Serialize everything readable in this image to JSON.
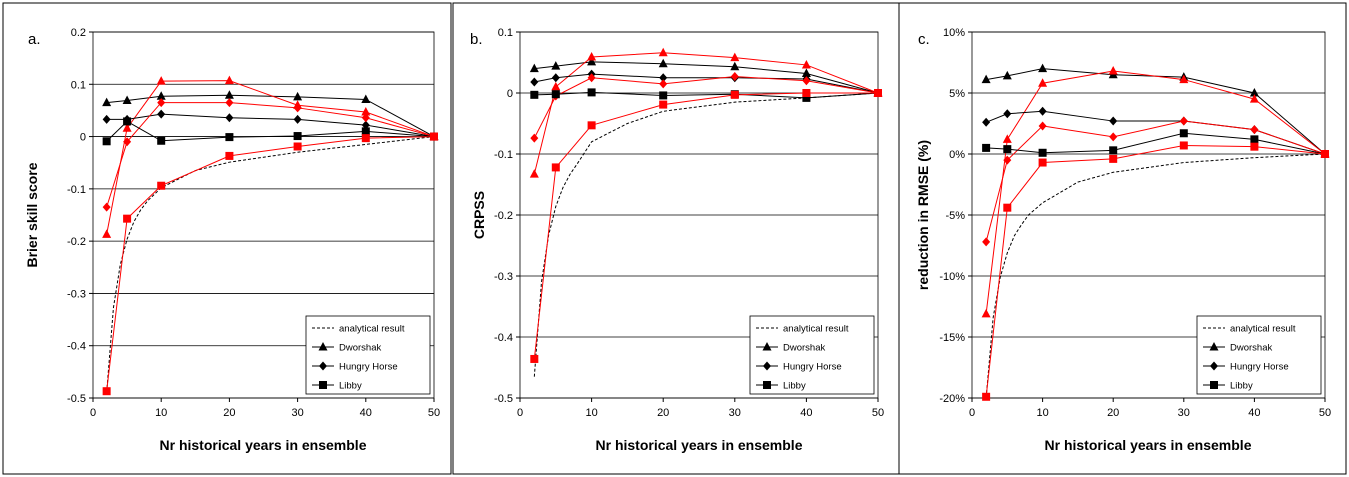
{
  "chart_data": [
    {
      "type": "line",
      "panel_label": "a.",
      "xlabel": "Nr historical years in ensemble",
      "ylabel": "Brier skill score",
      "xlim": [
        0,
        50
      ],
      "ylim": [
        -0.5,
        0.2
      ],
      "xticks": [
        "0",
        "10",
        "20",
        "30",
        "40",
        "50"
      ],
      "yticks": [
        "-0.5",
        "-0.4",
        "-0.3",
        "-0.2",
        "-0.1",
        "0",
        "0.1",
        "0.2"
      ],
      "grid": "horizontal",
      "legend_position": "bottom-right",
      "legend": [
        "analytical result",
        "Dworshak",
        "Hungry Horse",
        "Libby"
      ],
      "colors": {
        "black": "#000000",
        "red": "#ff0000"
      },
      "analytical": {
        "x": [
          2,
          3,
          4,
          5,
          6,
          7,
          8,
          10,
          15,
          20,
          30,
          40,
          50
        ],
        "y": [
          -0.49,
          -0.327,
          -0.245,
          -0.196,
          -0.163,
          -0.14,
          -0.123,
          -0.098,
          -0.065,
          -0.049,
          -0.03,
          -0.015,
          0
        ]
      },
      "series": [
        {
          "name": "Dworshak",
          "color": "black",
          "marker": "triangle",
          "x": [
            2,
            5,
            10,
            20,
            30,
            40,
            50
          ],
          "y": [
            0.065,
            0.069,
            0.077,
            0.079,
            0.076,
            0.071,
            0.0
          ]
        },
        {
          "color": "red",
          "marker": "triangle",
          "x": [
            2,
            5,
            10,
            20,
            30,
            40,
            50
          ],
          "y": [
            -0.187,
            0.016,
            0.106,
            0.107,
            0.06,
            0.047,
            0.0
          ]
        },
        {
          "name": "Hungry Horse",
          "color": "black",
          "marker": "diamond",
          "x": [
            2,
            5,
            10,
            20,
            30,
            40,
            50
          ],
          "y": [
            0.033,
            0.033,
            0.043,
            0.036,
            0.033,
            0.022,
            0.0
          ]
        },
        {
          "color": "red",
          "marker": "diamond",
          "x": [
            2,
            5,
            10,
            20,
            30,
            40,
            50
          ],
          "y": [
            -0.135,
            -0.01,
            0.065,
            0.065,
            0.055,
            0.036,
            0.0
          ]
        },
        {
          "name": "Libby",
          "color": "black",
          "marker": "square",
          "x": [
            2,
            5,
            10,
            20,
            30,
            40,
            50
          ],
          "y": [
            -0.009,
            0.029,
            -0.008,
            -0.001,
            0.001,
            0.01,
            0.0
          ]
        },
        {
          "color": "red",
          "marker": "square",
          "x": [
            2,
            5,
            10,
            20,
            30,
            40,
            50
          ],
          "y": [
            -0.487,
            -0.157,
            -0.094,
            -0.037,
            -0.019,
            -0.003,
            0.0
          ]
        }
      ]
    },
    {
      "type": "line",
      "panel_label": "b.",
      "xlabel": "Nr historical years in ensemble",
      "ylabel": "CRPSS",
      "xlim": [
        0,
        50
      ],
      "ylim": [
        -0.5,
        0.1
      ],
      "xticks": [
        "0",
        "10",
        "20",
        "30",
        "40",
        "50"
      ],
      "yticks": [
        "-0.5",
        "-0.4",
        "-0.3",
        "-0.2",
        "-0.1",
        "0",
        "0.1"
      ],
      "grid": "horizontal",
      "legend_position": "bottom-right",
      "legend": [
        "analytical result",
        "Dworshak",
        "Hungry Horse",
        "Libby"
      ],
      "colors": {
        "black": "#000000",
        "red": "#ff0000"
      },
      "analytical": {
        "x": [
          2,
          3,
          4,
          5,
          6,
          7,
          8,
          10,
          15,
          20,
          30,
          40,
          50
        ],
        "y": [
          -0.465,
          -0.31,
          -0.233,
          -0.186,
          -0.155,
          -0.133,
          -0.116,
          -0.08,
          -0.05,
          -0.03,
          -0.015,
          -0.008,
          0
        ]
      },
      "series": [
        {
          "name": "Dworshak",
          "color": "black",
          "marker": "triangle",
          "x": [
            2,
            5,
            10,
            20,
            30,
            40,
            50
          ],
          "y": [
            0.04,
            0.044,
            0.051,
            0.048,
            0.043,
            0.032,
            0.0
          ]
        },
        {
          "color": "red",
          "marker": "triangle",
          "x": [
            2,
            5,
            10,
            20,
            30,
            40,
            50
          ],
          "y": [
            -0.133,
            0.01,
            0.059,
            0.066,
            0.058,
            0.046,
            0.0
          ]
        },
        {
          "name": "Hungry Horse",
          "color": "black",
          "marker": "diamond",
          "x": [
            2,
            5,
            10,
            20,
            30,
            40,
            50
          ],
          "y": [
            0.018,
            0.025,
            0.031,
            0.025,
            0.025,
            0.023,
            0.0
          ]
        },
        {
          "color": "red",
          "marker": "diamond",
          "x": [
            2,
            5,
            10,
            20,
            30,
            40,
            50
          ],
          "y": [
            -0.074,
            -0.005,
            0.025,
            0.015,
            0.027,
            0.02,
            0.0
          ]
        },
        {
          "name": "Libby",
          "color": "black",
          "marker": "square",
          "x": [
            2,
            5,
            10,
            20,
            30,
            40,
            50
          ],
          "y": [
            -0.003,
            -0.002,
            0.001,
            -0.004,
            -0.002,
            -0.008,
            0.0
          ]
        },
        {
          "color": "red",
          "marker": "square",
          "x": [
            2,
            5,
            10,
            20,
            30,
            40,
            50
          ],
          "y": [
            -0.436,
            -0.122,
            -0.053,
            -0.019,
            -0.003,
            0.0,
            0.0
          ]
        }
      ]
    },
    {
      "type": "line",
      "panel_label": "c.",
      "xlabel": "Nr historical years in ensemble",
      "ylabel": "reduction in RMSE (%)",
      "xlim": [
        0,
        50
      ],
      "ylim": [
        -20,
        10
      ],
      "xticks": [
        "0",
        "10",
        "20",
        "30",
        "40",
        "50"
      ],
      "yticks": [
        "-20%",
        "-15%",
        "-10%",
        "-5%",
        "0%",
        "5%",
        "10%"
      ],
      "grid": "horizontal",
      "legend_position": "bottom-right",
      "legend": [
        "analytical result",
        "Dworshak",
        "Hungry Horse",
        "Libby"
      ],
      "colors": {
        "black": "#000000",
        "red": "#ff0000"
      },
      "analytical": {
        "x": [
          2,
          3,
          4,
          5,
          6,
          7,
          8,
          10,
          15,
          20,
          30,
          40,
          50
        ],
        "y": [
          -20,
          -13.4,
          -10.1,
          -8.1,
          -6.7,
          -5.8,
          -5.0,
          -4.0,
          -2.3,
          -1.5,
          -0.7,
          -0.3,
          0
        ]
      },
      "series": [
        {
          "name": "Dworshak",
          "color": "black",
          "marker": "triangle",
          "x": [
            2,
            5,
            10,
            20,
            30,
            40,
            50
          ],
          "y": [
            6.1,
            6.4,
            7.0,
            6.5,
            6.3,
            5.0,
            0.0
          ]
        },
        {
          "color": "red",
          "marker": "triangle",
          "x": [
            2,
            5,
            10,
            20,
            30,
            40,
            50
          ],
          "y": [
            -13.1,
            1.2,
            5.8,
            6.8,
            6.1,
            4.5,
            0.0
          ]
        },
        {
          "name": "Hungry Horse",
          "color": "black",
          "marker": "diamond",
          "x": [
            2,
            5,
            10,
            20,
            30,
            40,
            50
          ],
          "y": [
            2.6,
            3.3,
            3.5,
            2.7,
            2.7,
            2.0,
            0.0
          ]
        },
        {
          "color": "red",
          "marker": "diamond",
          "x": [
            2,
            5,
            10,
            20,
            30,
            40,
            50
          ],
          "y": [
            -7.2,
            -0.5,
            2.3,
            1.4,
            2.7,
            2.0,
            0.0
          ]
        },
        {
          "name": "Libby",
          "color": "black",
          "marker": "square",
          "x": [
            2,
            5,
            10,
            20,
            30,
            40,
            50
          ],
          "y": [
            0.5,
            0.4,
            0.1,
            0.3,
            1.7,
            1.2,
            0.0
          ]
        },
        {
          "color": "red",
          "marker": "square",
          "x": [
            2,
            5,
            10,
            20,
            30,
            40,
            50
          ],
          "y": [
            -19.9,
            -4.4,
            -0.7,
            -0.4,
            0.7,
            0.6,
            0.0
          ]
        }
      ]
    }
  ]
}
